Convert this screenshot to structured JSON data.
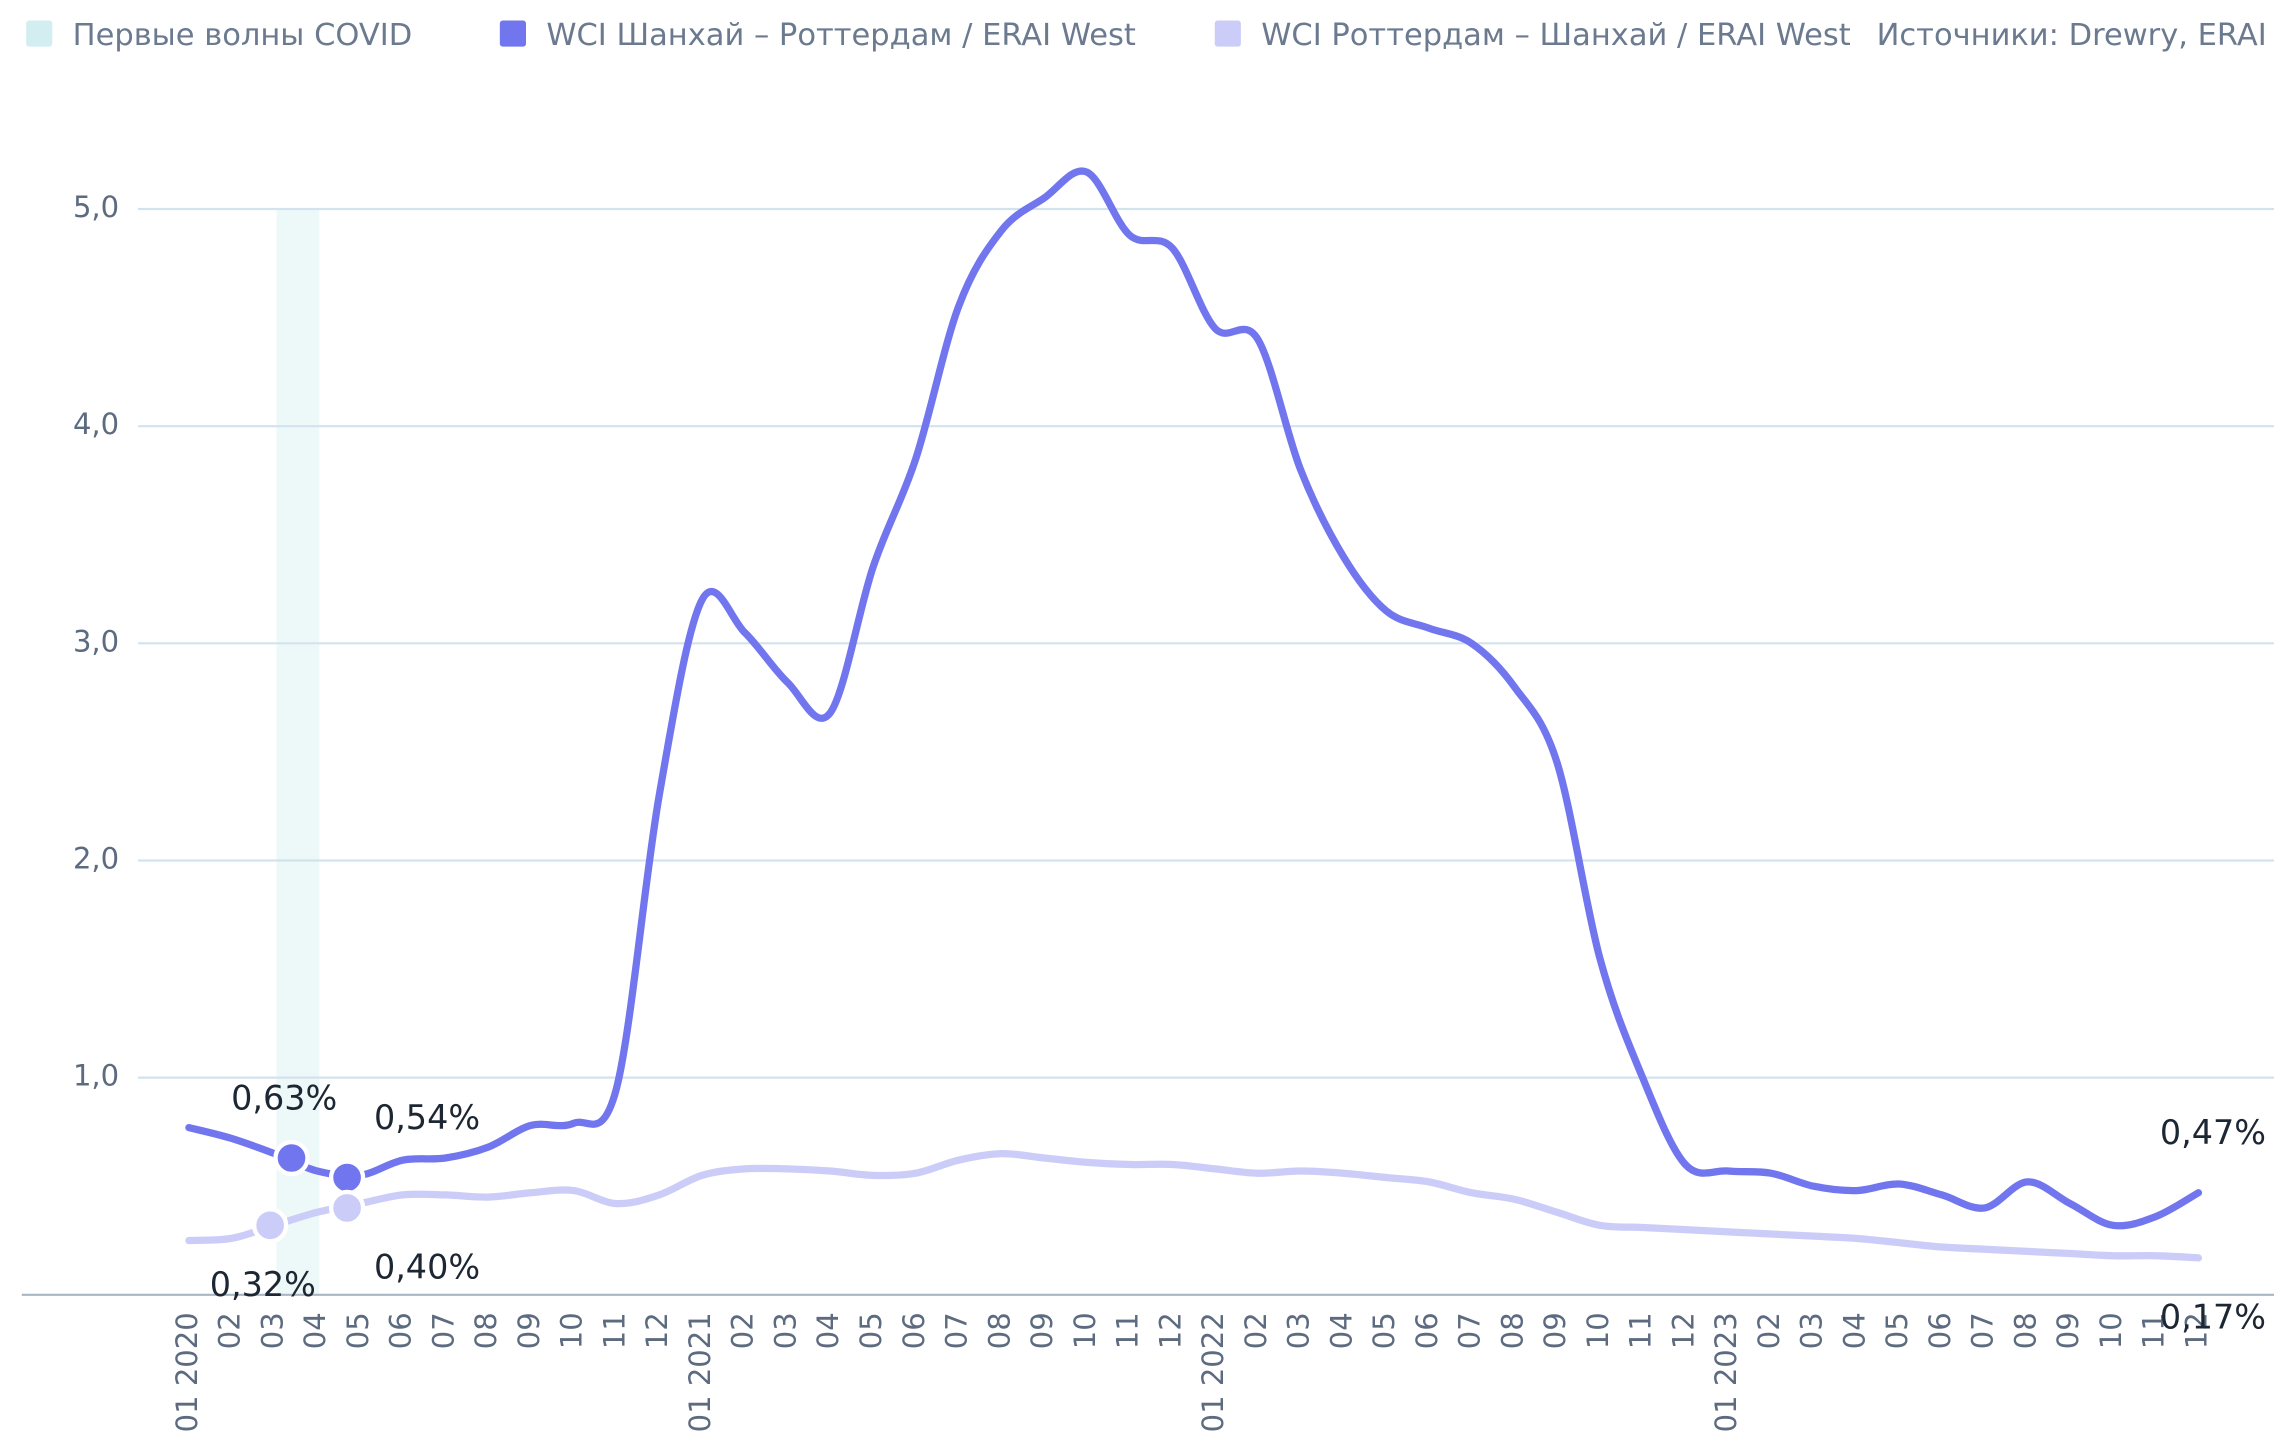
{
  "chart_data": {
    "type": "line",
    "source": "Источники: Drewry, ERAI",
    "band": {
      "name": "Первые волны COVID",
      "color": "#d3eef0",
      "span": [
        2.05,
        3.05
      ]
    },
    "categories": [
      "01 2020",
      "02",
      "03",
      "04",
      "05",
      "06",
      "07",
      "08",
      "09",
      "10",
      "11",
      "12",
      "01 2021",
      "02",
      "03",
      "04",
      "05",
      "06",
      "07",
      "08",
      "09",
      "10",
      "11",
      "12",
      "01 2022",
      "02",
      "03",
      "04",
      "05",
      "06",
      "07",
      "08",
      "09",
      "10",
      "11",
      "12",
      "01 2023",
      "02",
      "03",
      "04",
      "05",
      "06",
      "07",
      "08",
      "09",
      "10",
      "11",
      "12"
    ],
    "series": [
      {
        "name": "WCI Шанхай – Роттердам / ERAI West",
        "color": "#7176ee",
        "values": [
          0.77,
          0.72,
          0.65,
          0.57,
          0.55,
          0.62,
          0.63,
          0.68,
          0.78,
          0.79,
          0.95,
          2.3,
          3.2,
          3.05,
          2.82,
          2.68,
          3.35,
          3.85,
          4.55,
          4.9,
          5.05,
          5.17,
          4.88,
          4.82,
          4.45,
          4.4,
          3.8,
          3.4,
          3.15,
          3.07,
          3.0,
          2.8,
          2.45,
          1.55,
          1.0,
          0.6,
          0.57,
          0.56,
          0.5,
          0.48,
          0.51,
          0.46,
          0.4,
          0.52,
          0.42,
          0.32,
          0.36,
          0.47
        ]
      },
      {
        "name": "WCI Роттердам – Шанхай / ERAI West",
        "color": "#cbcdf8",
        "values": [
          0.25,
          0.26,
          0.32,
          0.38,
          0.42,
          0.46,
          0.46,
          0.45,
          0.47,
          0.48,
          0.42,
          0.46,
          0.55,
          0.58,
          0.58,
          0.57,
          0.55,
          0.56,
          0.62,
          0.65,
          0.63,
          0.61,
          0.6,
          0.6,
          0.58,
          0.56,
          0.57,
          0.56,
          0.54,
          0.52,
          0.47,
          0.44,
          0.38,
          0.32,
          0.31,
          0.3,
          0.29,
          0.28,
          0.27,
          0.26,
          0.24,
          0.22,
          0.21,
          0.2,
          0.19,
          0.18,
          0.18,
          0.17
        ]
      }
    ],
    "annotations": [
      {
        "label": "0,63%",
        "series": 0,
        "x": 2.4,
        "y": 0.63,
        "marker": true
      },
      {
        "label": "0,54%",
        "series": 0,
        "x": 3.7,
        "y": 0.54,
        "marker": true
      },
      {
        "label": "0,32%",
        "series": 1,
        "x": 1.9,
        "y": 0.32,
        "marker": true
      },
      {
        "label": "0,40%",
        "series": 1,
        "x": 3.7,
        "y": 0.4,
        "marker": true
      },
      {
        "label": "0,47%",
        "series": 0,
        "x": 47,
        "y": 0.47,
        "marker": false
      },
      {
        "label": "0,17%",
        "series": 1,
        "x": 47,
        "y": 0.17,
        "marker": false
      }
    ],
    "ylim": [
      0,
      5.5
    ],
    "yticks": [
      {
        "value": 1,
        "label": "1,0"
      },
      {
        "value": 2,
        "label": "2,0"
      },
      {
        "value": 3,
        "label": "3,0"
      },
      {
        "value": 4,
        "label": "4,0"
      },
      {
        "value": 5,
        "label": "5,0"
      }
    ],
    "grid": true
  }
}
